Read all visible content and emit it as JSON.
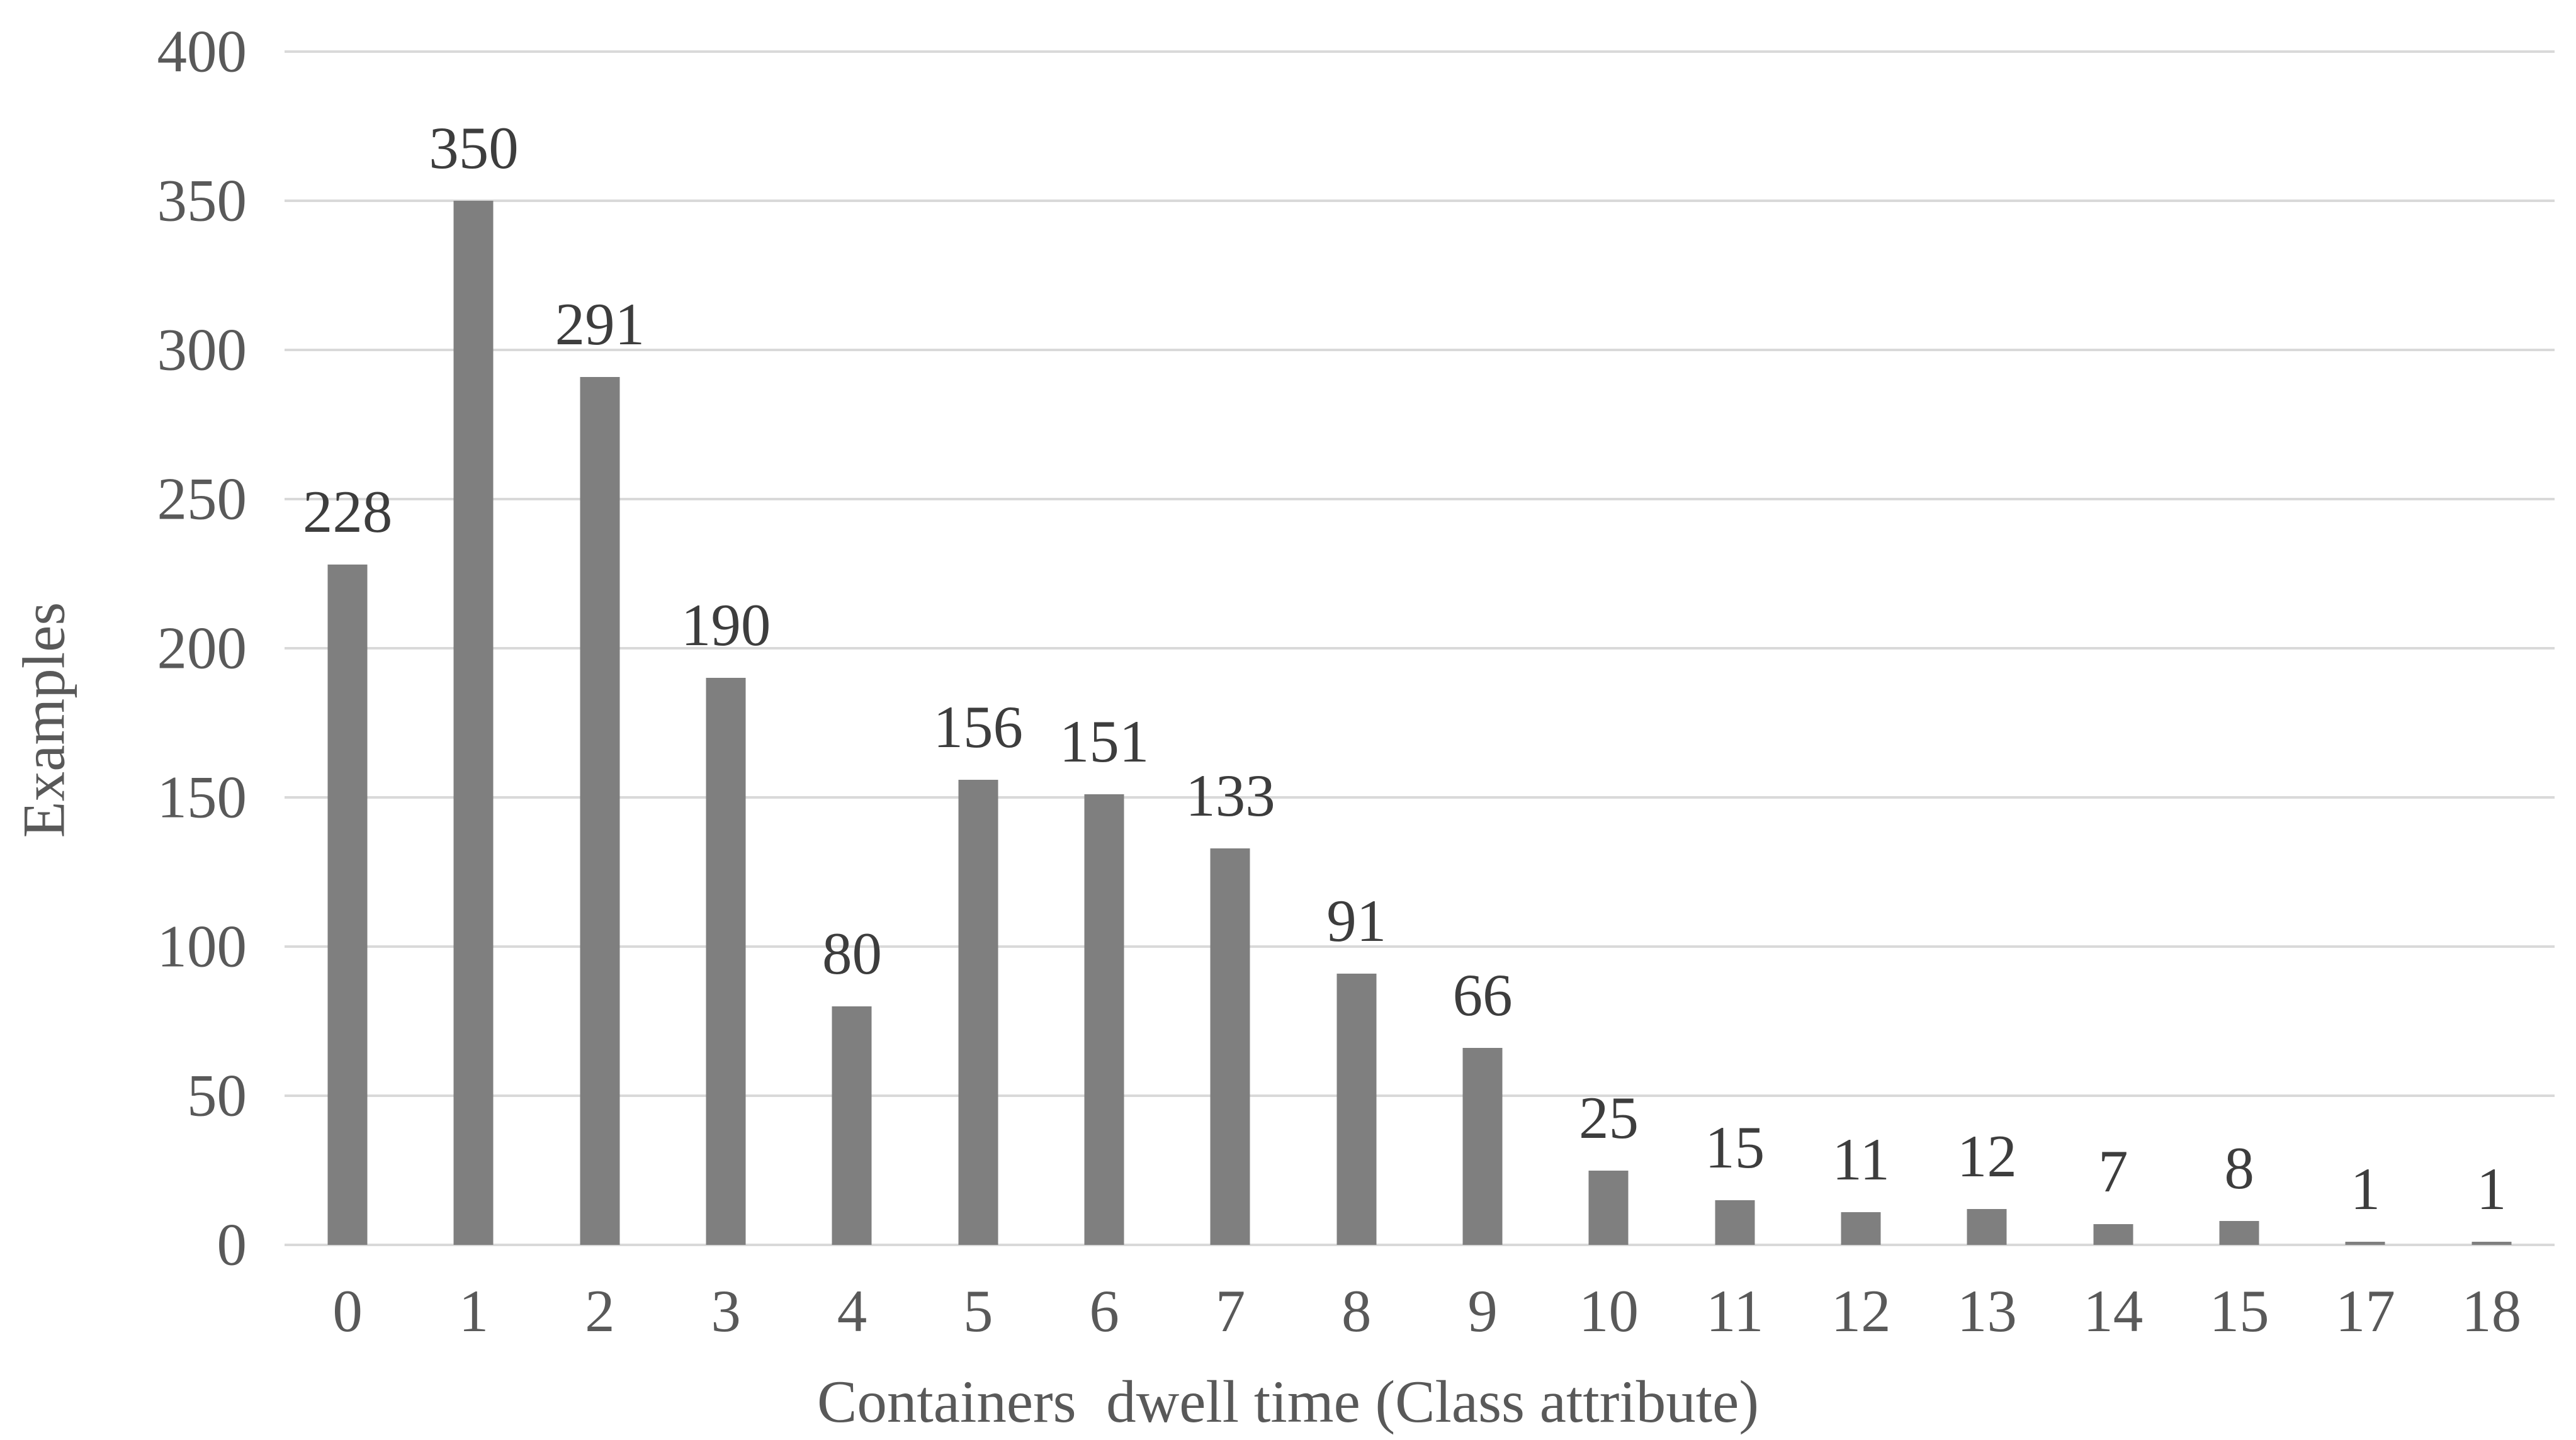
{
  "chart_data": {
    "type": "bar",
    "categories": [
      "0",
      "1",
      "2",
      "3",
      "4",
      "5",
      "6",
      "7",
      "8",
      "9",
      "10",
      "11",
      "12",
      "13",
      "14",
      "15",
      "17",
      "18"
    ],
    "values": [
      228,
      350,
      291,
      190,
      80,
      156,
      151,
      133,
      91,
      66,
      25,
      15,
      11,
      12,
      7,
      8,
      1,
      1
    ],
    "xlabel": "Containers  dwell time (Class attribute)",
    "ylabel": "Examples",
    "ylim": [
      0,
      400
    ],
    "yticks": [
      0,
      50,
      100,
      150,
      200,
      250,
      300,
      350,
      400
    ],
    "grid": "horizontal-only",
    "legend": "none",
    "data_labels": "above-bars",
    "bar_color": "#7f7f7f",
    "gridline_color": "#d9d9d9",
    "axis_text_color": "#595959",
    "data_label_color": "#3d3d3d",
    "background_color": "#ffffff"
  }
}
